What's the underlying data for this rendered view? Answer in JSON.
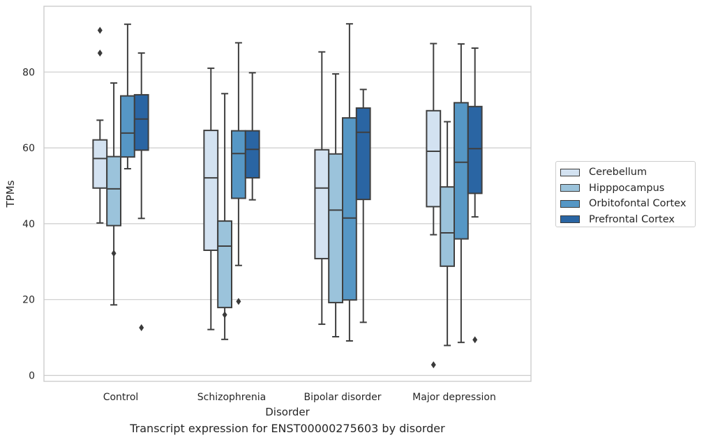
{
  "caption": "Transcript expression for ENST00000275603 by disorder",
  "chart_data": {
    "type": "box",
    "xlabel": "Disorder",
    "ylabel": "TPMs",
    "ylim": [
      -1.5,
      97
    ],
    "yticks": [
      0,
      20,
      40,
      60,
      80
    ],
    "grid": "horizontal",
    "legend_placement": "center-right outside",
    "categories": [
      "Control",
      "Schizophrenia",
      "Bipolar disorder",
      "Major depression"
    ],
    "series": [
      {
        "name": "Cerebellum",
        "color": "#d3e2f1",
        "boxes": [
          {
            "whisker_low": 40.2,
            "q1": 49.4,
            "median": 57.2,
            "q3": 62.1,
            "whisker_high": 67.3,
            "outliers": [
              85,
              91
            ]
          },
          {
            "whisker_low": 12.1,
            "q1": 33.0,
            "median": 52.1,
            "q3": 64.6,
            "whisker_high": 81.0,
            "outliers": []
          },
          {
            "whisker_low": 13.5,
            "q1": 30.8,
            "median": 49.4,
            "q3": 59.5,
            "whisker_high": 85.3,
            "outliers": []
          },
          {
            "whisker_low": 37.1,
            "q1": 44.5,
            "median": 59.1,
            "q3": 69.8,
            "whisker_high": 87.5,
            "outliers": [
              2.8
            ]
          }
        ]
      },
      {
        "name": "Hipppocampus",
        "color": "#9bc3db",
        "boxes": [
          {
            "whisker_low": 18.6,
            "q1": 39.5,
            "median": 49.2,
            "q3": 57.7,
            "whisker_high": 77.1,
            "outliers": [
              32.2
            ]
          },
          {
            "whisker_low": 9.5,
            "q1": 17.9,
            "median": 34.1,
            "q3": 40.7,
            "whisker_high": 74.3,
            "outliers": [
              16.0
            ]
          },
          {
            "whisker_low": 10.2,
            "q1": 19.2,
            "median": 43.6,
            "q3": 58.4,
            "whisker_high": 79.5,
            "outliers": []
          },
          {
            "whisker_low": 7.9,
            "q1": 28.8,
            "median": 37.6,
            "q3": 49.7,
            "whisker_high": 66.9,
            "outliers": []
          }
        ]
      },
      {
        "name": "Orbitofontal Cortex",
        "color": "#5697c5",
        "boxes": [
          {
            "whisker_low": 54.5,
            "q1": 57.6,
            "median": 63.9,
            "q3": 73.7,
            "whisker_high": 92.6,
            "outliers": []
          },
          {
            "whisker_low": 29.0,
            "q1": 46.7,
            "median": 58.5,
            "q3": 64.5,
            "whisker_high": 87.7,
            "outliers": [
              19.5
            ]
          },
          {
            "whisker_low": 9.1,
            "q1": 19.9,
            "median": 41.5,
            "q3": 67.9,
            "whisker_high": 92.7,
            "outliers": []
          },
          {
            "whisker_low": 8.7,
            "q1": 36.0,
            "median": 56.2,
            "q3": 71.9,
            "whisker_high": 87.4,
            "outliers": []
          }
        ]
      },
      {
        "name": "Prefrontal Cortex",
        "color": "#2a65a3",
        "boxes": [
          {
            "whisker_low": 41.4,
            "q1": 59.4,
            "median": 67.6,
            "q3": 74.0,
            "whisker_high": 85.0,
            "outliers": [
              12.6
            ]
          },
          {
            "whisker_low": 46.3,
            "q1": 52.1,
            "median": 59.6,
            "q3": 64.5,
            "whisker_high": 79.8,
            "outliers": []
          },
          {
            "whisker_low": 14.0,
            "q1": 46.4,
            "median": 64.1,
            "q3": 70.5,
            "whisker_high": 75.4,
            "outliers": []
          },
          {
            "whisker_low": 41.8,
            "q1": 48.0,
            "median": 59.8,
            "q3": 70.9,
            "whisker_high": 86.3,
            "outliers": [
              9.4
            ]
          }
        ]
      }
    ]
  }
}
